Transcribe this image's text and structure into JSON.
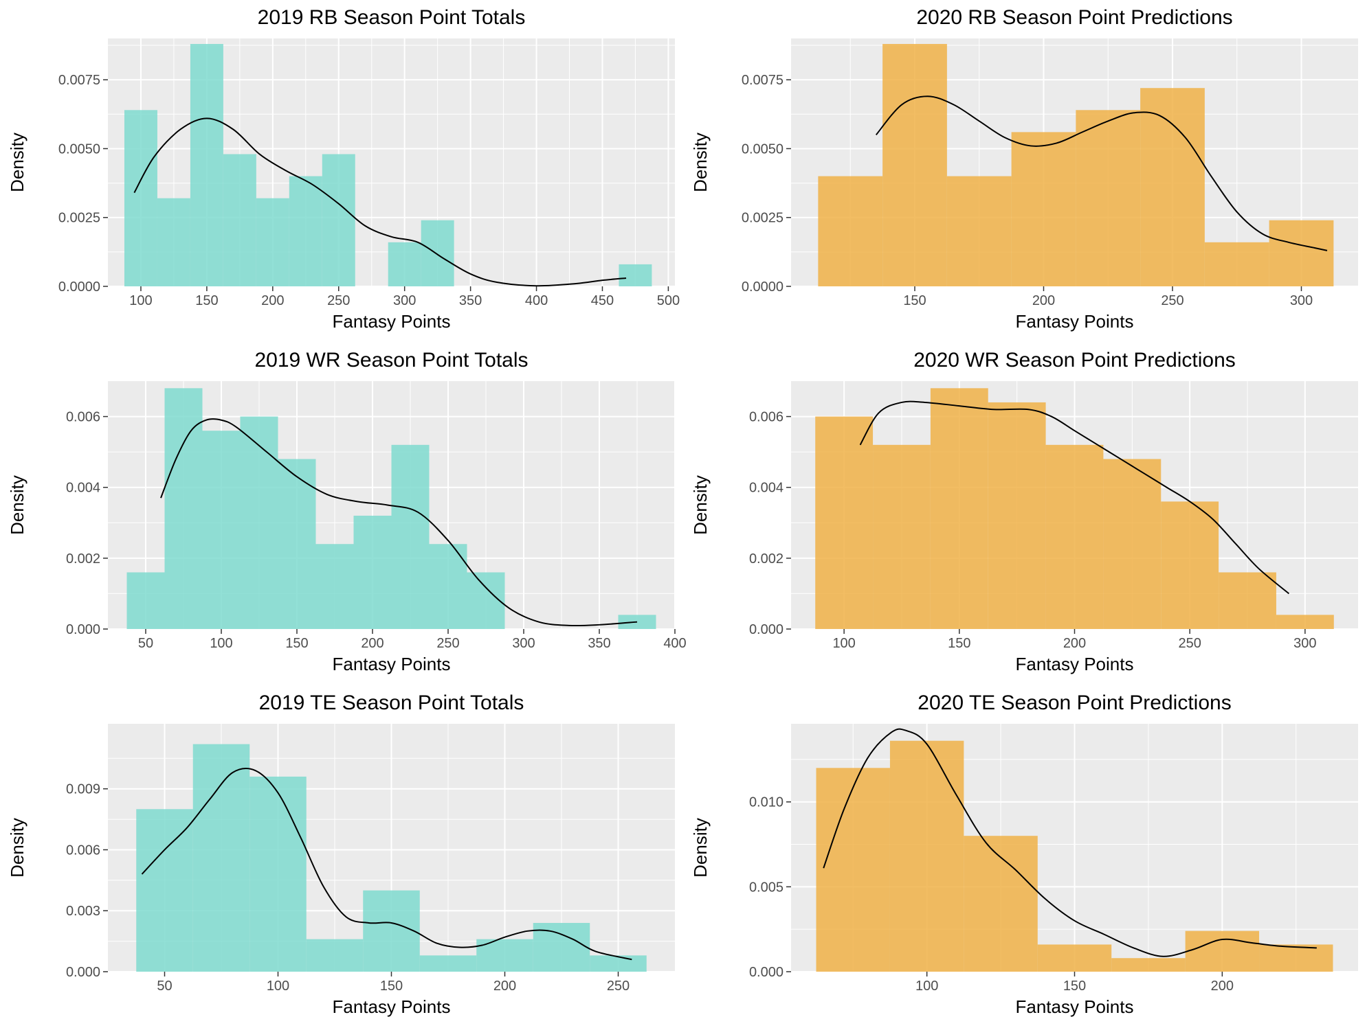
{
  "chart_data": [
    {
      "type": "histogram",
      "title": "2019 RB Season Point Totals",
      "xlabel": "Fantasy Points",
      "ylabel": "Density",
      "color": "#7fdbcf",
      "xlim": [
        75,
        505
      ],
      "ylim": [
        0,
        0.009
      ],
      "xticks": [
        100,
        150,
        200,
        250,
        300,
        350,
        400,
        450,
        500
      ],
      "xtick_labels": [
        "100",
        "150",
        "200",
        "250",
        "300",
        "350",
        "400",
        "450",
        "500"
      ],
      "yticks": [
        0,
        0.0025,
        0.005,
        0.0075
      ],
      "ytick_labels": [
        "0.0000",
        "0.0025",
        "0.0050",
        "0.0075"
      ],
      "bins": [
        {
          "x0": 87.5,
          "x1": 112.5,
          "density": 0.0064
        },
        {
          "x0": 112.5,
          "x1": 137.5,
          "density": 0.0032
        },
        {
          "x0": 137.5,
          "x1": 162.5,
          "density": 0.0088
        },
        {
          "x0": 162.5,
          "x1": 187.5,
          "density": 0.0048
        },
        {
          "x0": 187.5,
          "x1": 212.5,
          "density": 0.0032
        },
        {
          "x0": 212.5,
          "x1": 237.5,
          "density": 0.004
        },
        {
          "x0": 237.5,
          "x1": 262.5,
          "density": 0.0048
        },
        {
          "x0": 262.5,
          "x1": 287.5,
          "density": 0
        },
        {
          "x0": 287.5,
          "x1": 312.5,
          "density": 0.0016
        },
        {
          "x0": 312.5,
          "x1": 337.5,
          "density": 0.0024
        },
        {
          "x0": 337.5,
          "x1": 462.5,
          "density": 0
        },
        {
          "x0": 462.5,
          "x1": 487.5,
          "density": 0.0008
        }
      ],
      "density_curve": {
        "x": [
          95,
          110,
          130,
          150,
          170,
          190,
          210,
          230,
          250,
          270,
          290,
          310,
          330,
          350,
          370,
          400,
          430,
          450,
          468
        ],
        "y": [
          0.0034,
          0.0047,
          0.0057,
          0.0061,
          0.0057,
          0.0048,
          0.0042,
          0.0037,
          0.003,
          0.0022,
          0.0018,
          0.0016,
          0.001,
          0.00045,
          0.00015,
          2e-05,
          0.0001,
          0.00022,
          0.0003
        ]
      }
    },
    {
      "type": "histogram",
      "title": "2020 RB Season Point Predictions",
      "xlabel": "Fantasy Points",
      "ylabel": "Density",
      "color": "#f0b248",
      "xlim": [
        102,
        322
      ],
      "ylim": [
        0,
        0.009
      ],
      "xticks": [
        150,
        200,
        250,
        300
      ],
      "xtick_labels": [
        "150",
        "200",
        "250",
        "300"
      ],
      "yticks": [
        0,
        0.0025,
        0.005,
        0.0075
      ],
      "ytick_labels": [
        "0.0000",
        "0.0025",
        "0.0050",
        "0.0075"
      ],
      "bins": [
        {
          "x0": 112.5,
          "x1": 137.5,
          "density": 0.004
        },
        {
          "x0": 137.5,
          "x1": 162.5,
          "density": 0.0088
        },
        {
          "x0": 162.5,
          "x1": 187.5,
          "density": 0.004
        },
        {
          "x0": 187.5,
          "x1": 212.5,
          "density": 0.0056
        },
        {
          "x0": 212.5,
          "x1": 237.5,
          "density": 0.0064
        },
        {
          "x0": 237.5,
          "x1": 262.5,
          "density": 0.0072
        },
        {
          "x0": 262.5,
          "x1": 287.5,
          "density": 0.0016
        },
        {
          "x0": 287.5,
          "x1": 312.5,
          "density": 0.0024
        }
      ],
      "density_curve": {
        "x": [
          135,
          145,
          155,
          165,
          175,
          185,
          195,
          205,
          215,
          225,
          235,
          245,
          255,
          265,
          275,
          285,
          295,
          305,
          310
        ],
        "y": [
          0.0055,
          0.0066,
          0.0069,
          0.0066,
          0.006,
          0.0054,
          0.0051,
          0.0052,
          0.0056,
          0.006,
          0.0063,
          0.0062,
          0.0054,
          0.004,
          0.0027,
          0.0019,
          0.0016,
          0.0014,
          0.0013
        ]
      }
    },
    {
      "type": "histogram",
      "title": "2019 WR Season Point Totals",
      "xlabel": "Fantasy Points",
      "ylabel": "Density",
      "color": "#7fdbcf",
      "xlim": [
        25,
        400
      ],
      "ylim": [
        0,
        0.007
      ],
      "xticks": [
        50,
        100,
        150,
        200,
        250,
        300,
        350,
        400
      ],
      "xtick_labels": [
        "50",
        "100",
        "150",
        "200",
        "250",
        "300",
        "350",
        "400"
      ],
      "yticks": [
        0,
        0.002,
        0.004,
        0.006
      ],
      "ytick_labels": [
        "0.000",
        "0.002",
        "0.004",
        "0.006"
      ],
      "bins": [
        {
          "x0": 37.5,
          "x1": 62.5,
          "density": 0.0016
        },
        {
          "x0": 62.5,
          "x1": 87.5,
          "density": 0.0068
        },
        {
          "x0": 87.5,
          "x1": 112.5,
          "density": 0.0056
        },
        {
          "x0": 112.5,
          "x1": 137.5,
          "density": 0.006
        },
        {
          "x0": 137.5,
          "x1": 162.5,
          "density": 0.0048
        },
        {
          "x0": 162.5,
          "x1": 187.5,
          "density": 0.0024
        },
        {
          "x0": 187.5,
          "x1": 212.5,
          "density": 0.0032
        },
        {
          "x0": 212.5,
          "x1": 237.5,
          "density": 0.0052
        },
        {
          "x0": 237.5,
          "x1": 262.5,
          "density": 0.0024
        },
        {
          "x0": 262.5,
          "x1": 287.5,
          "density": 0.0016
        },
        {
          "x0": 287.5,
          "x1": 362.5,
          "density": 0
        },
        {
          "x0": 362.5,
          "x1": 387.5,
          "density": 0.0004
        }
      ],
      "density_curve": {
        "x": [
          60,
          70,
          80,
          90,
          100,
          110,
          130,
          150,
          170,
          190,
          210,
          230,
          250,
          270,
          290,
          310,
          330,
          350,
          375
        ],
        "y": [
          0.0037,
          0.0048,
          0.0056,
          0.0059,
          0.0059,
          0.0057,
          0.005,
          0.0043,
          0.0038,
          0.0036,
          0.0035,
          0.0033,
          0.0025,
          0.0014,
          0.0006,
          0.0002,
          0.0001,
          0.00012,
          0.0002
        ]
      }
    },
    {
      "type": "histogram",
      "title": "2020 WR Season Point Predictions",
      "xlabel": "Fantasy Points",
      "ylabel": "Density",
      "color": "#f0b248",
      "xlim": [
        77,
        323
      ],
      "ylim": [
        0,
        0.007
      ],
      "xticks": [
        100,
        150,
        200,
        250,
        300
      ],
      "xtick_labels": [
        "100",
        "150",
        "200",
        "250",
        "300"
      ],
      "yticks": [
        0,
        0.002,
        0.004,
        0.006
      ],
      "ytick_labels": [
        "0.000",
        "0.002",
        "0.004",
        "0.006"
      ],
      "bins": [
        {
          "x0": 87.5,
          "x1": 112.5,
          "density": 0.006
        },
        {
          "x0": 112.5,
          "x1": 137.5,
          "density": 0.0052
        },
        {
          "x0": 137.5,
          "x1": 162.5,
          "density": 0.0068
        },
        {
          "x0": 162.5,
          "x1": 187.5,
          "density": 0.0064
        },
        {
          "x0": 187.5,
          "x1": 212.5,
          "density": 0.0052
        },
        {
          "x0": 212.5,
          "x1": 237.5,
          "density": 0.0048
        },
        {
          "x0": 237.5,
          "x1": 262.5,
          "density": 0.0036
        },
        {
          "x0": 262.5,
          "x1": 287.5,
          "density": 0.0016
        },
        {
          "x0": 287.5,
          "x1": 312.5,
          "density": 0.0004
        }
      ],
      "density_curve": {
        "x": [
          107,
          115,
          125,
          135,
          150,
          165,
          180,
          190,
          200,
          210,
          220,
          230,
          240,
          250,
          260,
          270,
          280,
          293
        ],
        "y": [
          0.0052,
          0.0061,
          0.0064,
          0.0064,
          0.0063,
          0.0062,
          0.0062,
          0.006,
          0.0056,
          0.0052,
          0.0048,
          0.0044,
          0.004,
          0.0036,
          0.0031,
          0.0024,
          0.0017,
          0.001
        ]
      }
    },
    {
      "type": "histogram",
      "title": "2019 TE Season Point Totals",
      "xlabel": "Fantasy Points",
      "ylabel": "Density",
      "color": "#7fdbcf",
      "xlim": [
        25,
        275
      ],
      "ylim": [
        0,
        0.0122
      ],
      "xticks": [
        50,
        100,
        150,
        200,
        250
      ],
      "xtick_labels": [
        "50",
        "100",
        "150",
        "200",
        "250"
      ],
      "yticks": [
        0,
        0.003,
        0.006,
        0.009
      ],
      "ytick_labels": [
        "0.000",
        "0.003",
        "0.006",
        "0.009"
      ],
      "bins": [
        {
          "x0": 37.5,
          "x1": 62.5,
          "density": 0.008
        },
        {
          "x0": 62.5,
          "x1": 87.5,
          "density": 0.0112
        },
        {
          "x0": 87.5,
          "x1": 112.5,
          "density": 0.0096
        },
        {
          "x0": 112.5,
          "x1": 137.5,
          "density": 0.0016
        },
        {
          "x0": 137.5,
          "x1": 162.5,
          "density": 0.004
        },
        {
          "x0": 162.5,
          "x1": 187.5,
          "density": 0.0008
        },
        {
          "x0": 187.5,
          "x1": 212.5,
          "density": 0.0016
        },
        {
          "x0": 212.5,
          "x1": 237.5,
          "density": 0.0024
        },
        {
          "x0": 237.5,
          "x1": 262.5,
          "density": 0.0008
        }
      ],
      "density_curve": {
        "x": [
          40,
          50,
          60,
          70,
          80,
          90,
          100,
          110,
          120,
          130,
          140,
          150,
          160,
          170,
          180,
          190,
          200,
          210,
          220,
          230,
          240,
          256
        ],
        "y": [
          0.0048,
          0.006,
          0.0071,
          0.0085,
          0.0098,
          0.0099,
          0.0088,
          0.0066,
          0.0042,
          0.0027,
          0.0024,
          0.0024,
          0.002,
          0.0014,
          0.0012,
          0.0013,
          0.0017,
          0.002,
          0.002,
          0.0016,
          0.001,
          0.0006
        ]
      }
    },
    {
      "type": "histogram",
      "title": "2020 TE Season Point Predictions",
      "xlabel": "Fantasy Points",
      "ylabel": "Density",
      "color": "#f0b248",
      "xlim": [
        54,
        246
      ],
      "ylim": [
        0,
        0.0146
      ],
      "xticks": [
        100,
        150,
        200
      ],
      "xtick_labels": [
        "100",
        "150",
        "200"
      ],
      "yticks": [
        0,
        0.005,
        0.01
      ],
      "ytick_labels": [
        "0.000",
        "0.005",
        "0.010"
      ],
      "bins": [
        {
          "x0": 62.5,
          "x1": 87.5,
          "density": 0.012
        },
        {
          "x0": 87.5,
          "x1": 112.5,
          "density": 0.0136
        },
        {
          "x0": 112.5,
          "x1": 137.5,
          "density": 0.008
        },
        {
          "x0": 137.5,
          "x1": 162.5,
          "density": 0.0016
        },
        {
          "x0": 162.5,
          "x1": 187.5,
          "density": 0.0008
        },
        {
          "x0": 187.5,
          "x1": 212.5,
          "density": 0.0024
        },
        {
          "x0": 212.5,
          "x1": 237.5,
          "density": 0.0016
        }
      ],
      "density_curve": {
        "x": [
          65,
          72,
          80,
          88,
          93,
          100,
          110,
          120,
          130,
          140,
          150,
          160,
          170,
          180,
          190,
          200,
          210,
          220,
          232
        ],
        "y": [
          0.0061,
          0.0096,
          0.0126,
          0.0141,
          0.0142,
          0.0134,
          0.0104,
          0.0076,
          0.006,
          0.0043,
          0.003,
          0.0022,
          0.0014,
          0.0009,
          0.0013,
          0.0019,
          0.0017,
          0.0015,
          0.0014
        ]
      }
    }
  ]
}
